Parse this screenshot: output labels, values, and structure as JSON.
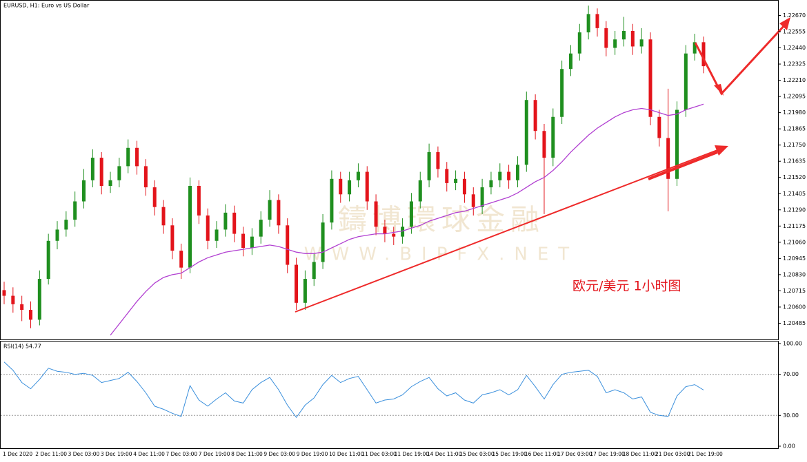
{
  "chart_data": [
    {
      "type": "candlestick",
      "title": "EURUSD, H1:  Euro vs US Dollar",
      "annotation": "欧元/美元 1小时图",
      "watermark": [
        "鑄博環球金融",
        "WWW.BIPFX.NET"
      ],
      "up_color": "#1f8f1f",
      "down_color": "#e3141b",
      "ma_color": "#b13fd1",
      "ylim": [
        1.2037,
        1.2277
      ],
      "yticks": [
        {
          "value": 1.20485,
          "label": "1.20485"
        },
        {
          "value": 1.206,
          "label": "1.20600"
        },
        {
          "value": 1.20715,
          "label": "1.20715"
        },
        {
          "value": 1.2083,
          "label": "1.20830"
        },
        {
          "value": 1.20945,
          "label": "1.20945"
        },
        {
          "value": 1.2106,
          "label": "1.21060"
        },
        {
          "value": 1.21175,
          "label": "1.21175"
        },
        {
          "value": 1.2129,
          "label": "1.21290"
        },
        {
          "value": 1.21405,
          "label": "1.21405"
        },
        {
          "value": 1.2152,
          "label": "1.21520"
        },
        {
          "value": 1.21635,
          "label": "1.21635"
        },
        {
          "value": 1.2175,
          "label": "1.21750"
        },
        {
          "value": 1.21865,
          "label": "1.21865"
        },
        {
          "value": 1.2198,
          "label": "1.21980"
        },
        {
          "value": 1.22095,
          "label": "1.22095"
        },
        {
          "value": 1.2221,
          "label": "1.22210"
        },
        {
          "value": 1.22325,
          "label": "1.22325"
        },
        {
          "value": 1.2244,
          "label": "1.22440"
        },
        {
          "value": 1.22555,
          "label": "1.22555"
        },
        {
          "value": 1.2267,
          "label": "1.22670"
        }
      ],
      "x_tick_labels": [
        "1 Dec 2020",
        "2 Dec 11:00",
        "3 Dec 03:00",
        "3 Dec 19:00",
        "4 Dec 11:00",
        "7 Dec 03:00",
        "7 Dec 19:00",
        "8 Dec 11:00",
        "9 Dec 03:00",
        "9 Dec 19:00",
        "10 Dec 11:00",
        "11 Dec 03:00",
        "11 Dec 19:00",
        "14 Dec 11:00",
        "15 Dec 03:00",
        "15 Dec 19:00",
        "16 Dec 11:00",
        "17 Dec 03:00",
        "17 Dec 19:00",
        "18 Dec 11:00",
        "21 Dec 03:00",
        "21 Dec 19:00"
      ],
      "candles": {
        "open": [
          1.2072,
          1.2068,
          1.2062,
          1.2058,
          1.2051,
          1.208,
          1.2107,
          1.2115,
          1.2122,
          1.2135,
          1.215,
          1.2166,
          1.2146,
          1.215,
          1.216,
          1.2173,
          1.216,
          1.2145,
          1.2131,
          1.2118,
          1.21,
          1.2088,
          1.2146,
          1.2125,
          1.2107,
          1.2115,
          1.2127,
          1.2112,
          1.2102,
          1.211,
          1.2122,
          1.2136,
          1.2118,
          1.209,
          1.2063,
          1.208,
          1.2092,
          1.212,
          1.2151,
          1.214,
          1.215,
          1.2156,
          1.2135,
          1.2117,
          1.2112,
          1.211,
          1.2117,
          1.2135,
          1.215,
          1.217,
          1.2158,
          1.2148,
          1.2151,
          1.214,
          1.2131,
          1.2145,
          1.215,
          1.2156,
          1.215,
          1.2161,
          1.2207,
          1.2185,
          1.2166,
          1.2195,
          1.2229,
          1.224,
          1.2255,
          1.2268,
          1.2258,
          1.2244,
          1.225,
          1.2256,
          1.2245,
          1.225,
          1.2195,
          1.218,
          1.2151,
          1.22,
          1.224,
          1.2248
        ],
        "high": [
          1.2078,
          1.2074,
          1.2068,
          1.2064,
          1.2086,
          1.2112,
          1.2121,
          1.2128,
          1.2142,
          1.2158,
          1.2172,
          1.217,
          1.2156,
          1.2166,
          1.2179,
          1.2178,
          1.2165,
          1.215,
          1.2136,
          1.2123,
          1.2105,
          1.2152,
          1.215,
          1.213,
          1.2121,
          1.2133,
          1.2132,
          1.2117,
          1.2116,
          1.2128,
          1.2143,
          1.214,
          1.2123,
          1.2095,
          1.2086,
          1.2098,
          1.2126,
          1.2157,
          1.2156,
          1.2156,
          1.2162,
          1.216,
          1.214,
          1.2122,
          1.2117,
          1.2123,
          1.2141,
          1.2156,
          1.2176,
          1.2174,
          1.2163,
          1.2157,
          1.2156,
          1.2145,
          1.2151,
          1.2156,
          1.2162,
          1.2161,
          1.2167,
          1.2213,
          1.2211,
          1.219,
          1.2201,
          1.2235,
          1.2246,
          1.2261,
          1.2274,
          1.2272,
          1.2263,
          1.2256,
          1.2266,
          1.2261,
          1.2258,
          1.2255,
          1.22,
          1.2215,
          1.2206,
          1.2246,
          1.2254,
          1.2252
        ],
        "low": [
          1.2062,
          1.2056,
          1.205,
          1.2045,
          1.2047,
          1.2076,
          1.2101,
          1.211,
          1.2117,
          1.213,
          1.2145,
          1.214,
          1.2141,
          1.2145,
          1.2155,
          1.2154,
          1.2139,
          1.2125,
          1.2112,
          1.2094,
          1.208,
          1.2084,
          1.2119,
          1.2101,
          1.2102,
          1.211,
          1.2106,
          1.2096,
          1.2097,
          1.2105,
          1.2117,
          1.2112,
          1.2084,
          1.2058,
          1.2058,
          1.2075,
          1.2087,
          1.2115,
          1.2134,
          1.2135,
          1.2145,
          1.2129,
          1.2111,
          1.2106,
          1.2104,
          1.2105,
          1.2112,
          1.213,
          1.2145,
          1.2152,
          1.2142,
          1.2143,
          1.2134,
          1.2125,
          1.2126,
          1.214,
          1.2145,
          1.2144,
          1.2145,
          1.2156,
          1.2179,
          1.2126,
          1.216,
          1.219,
          1.2224,
          1.2235,
          1.225,
          1.2252,
          1.2238,
          1.2239,
          1.2245,
          1.2239,
          1.224,
          1.2189,
          1.2174,
          1.2128,
          1.2146,
          1.2195,
          1.2235,
          1.2226
        ],
        "close": [
          1.2068,
          1.2062,
          1.2058,
          1.2051,
          1.208,
          1.2107,
          1.2115,
          1.2122,
          1.2135,
          1.215,
          1.2166,
          1.2146,
          1.215,
          1.216,
          1.2173,
          1.216,
          1.2145,
          1.2131,
          1.2118,
          1.21,
          1.2088,
          1.2146,
          1.2125,
          1.2107,
          1.2115,
          1.2127,
          1.2112,
          1.2102,
          1.211,
          1.2122,
          1.2136,
          1.2118,
          1.209,
          1.2063,
          1.208,
          1.2092,
          1.212,
          1.2151,
          1.214,
          1.215,
          1.2156,
          1.2135,
          1.2117,
          1.2112,
          1.211,
          1.2117,
          1.2135,
          1.215,
          1.217,
          1.2158,
          1.2148,
          1.2151,
          1.214,
          1.2131,
          1.2145,
          1.215,
          1.2156,
          1.215,
          1.2161,
          1.2207,
          1.2185,
          1.2166,
          1.2195,
          1.2229,
          1.224,
          1.2255,
          1.2268,
          1.2258,
          1.2244,
          1.225,
          1.2256,
          1.2245,
          1.225,
          1.2195,
          1.218,
          1.2151,
          1.22,
          1.224,
          1.2248,
          1.2231
        ]
      },
      "moving_average": [
        null,
        null,
        null,
        null,
        null,
        null,
        null,
        null,
        null,
        null,
        null,
        null,
        1.204,
        1.2048,
        1.2056,
        1.2064,
        1.2071,
        1.2077,
        1.2081,
        1.2083,
        1.2084,
        1.2088,
        1.2092,
        1.2095,
        1.2097,
        1.2099,
        1.21,
        1.2101,
        1.2102,
        1.2103,
        1.2104,
        1.2103,
        1.2101,
        1.2099,
        1.2098,
        1.2098,
        1.2099,
        1.2102,
        1.2105,
        1.2108,
        1.211,
        1.2111,
        1.2112,
        1.2112,
        1.2113,
        1.2114,
        1.2116,
        1.2118,
        1.2121,
        1.2123,
        1.2125,
        1.2127,
        1.2128,
        1.213,
        1.2132,
        1.2134,
        1.2136,
        1.2138,
        1.2141,
        1.2145,
        1.2149,
        1.2152,
        1.2157,
        1.2163,
        1.217,
        1.2176,
        1.2182,
        1.2187,
        1.2191,
        1.2195,
        1.2198,
        1.22,
        1.2201,
        1.22,
        1.2198,
        1.2196,
        1.2197,
        1.22,
        1.2202,
        1.2204
      ]
    },
    {
      "type": "line",
      "title": "RSI(14) 54.77",
      "color": "#3a8fdc",
      "ylim": [
        0,
        100
      ],
      "yticks": [
        {
          "value": 0,
          "label": "0.00"
        },
        {
          "value": 30,
          "label": "30.00"
        },
        {
          "value": 70,
          "label": "70.00"
        },
        {
          "value": 100,
          "label": "100.00"
        }
      ],
      "levels": [
        30,
        70
      ],
      "values": [
        82,
        74,
        62,
        56,
        65,
        76,
        73,
        72,
        70,
        71,
        69,
        62,
        64,
        66,
        72,
        63,
        52,
        39,
        36,
        32,
        29,
        59,
        45,
        39,
        46,
        52,
        44,
        42,
        55,
        62,
        67,
        55,
        40,
        28,
        40,
        47,
        60,
        69,
        62,
        66,
        68,
        55,
        42,
        45,
        46,
        50,
        58,
        63,
        67,
        56,
        49,
        52,
        45,
        42,
        50,
        52,
        55,
        50,
        55,
        69,
        58,
        46,
        60,
        70,
        72,
        73,
        74,
        68,
        52,
        55,
        52,
        46,
        48,
        33,
        30,
        29,
        49,
        58,
        60,
        54.77
      ]
    }
  ]
}
